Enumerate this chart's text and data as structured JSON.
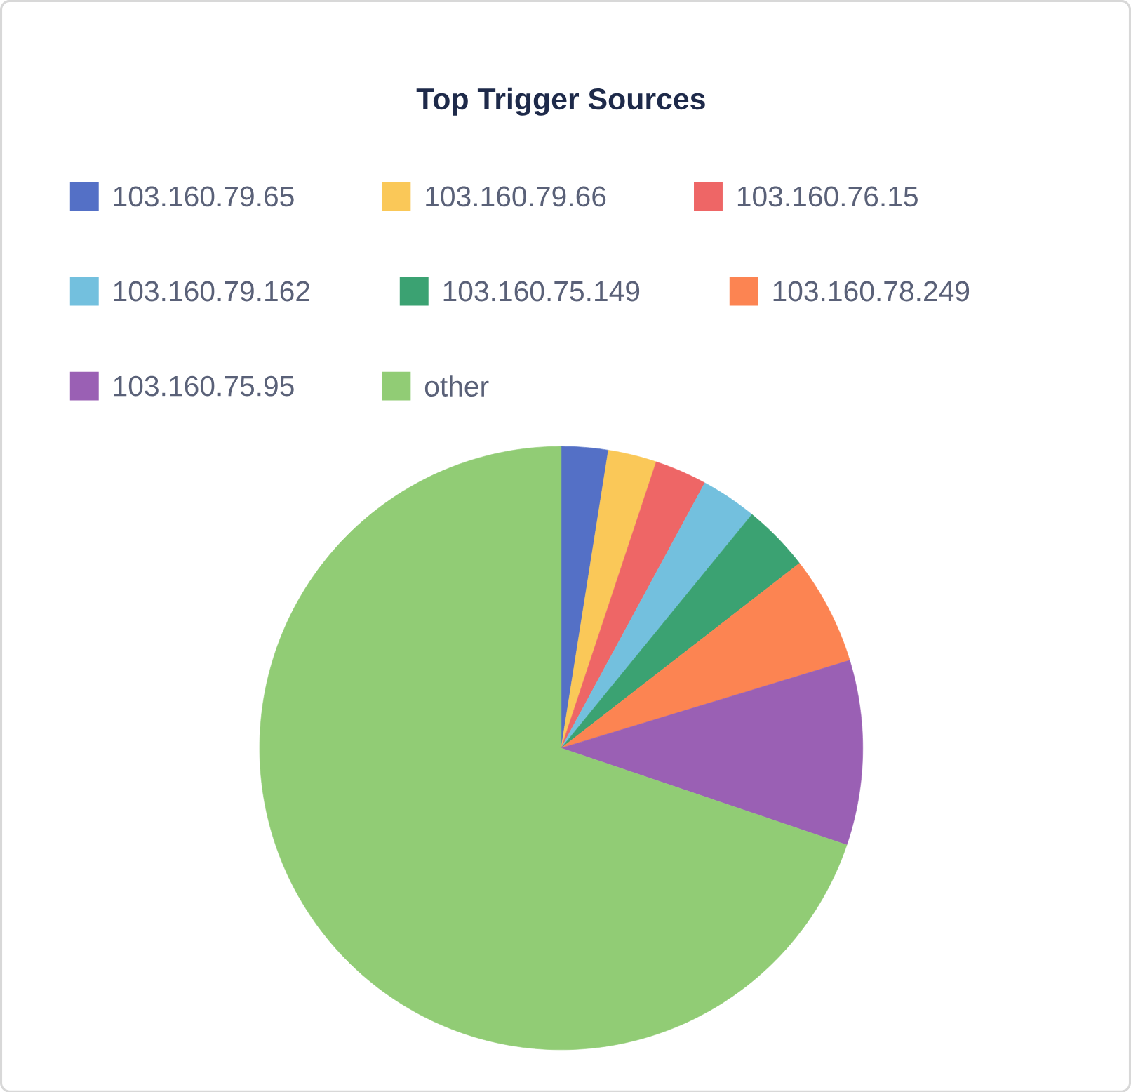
{
  "chart_data": {
    "type": "pie",
    "title": "Top Trigger Sources",
    "legend": "top",
    "categories": [
      "103.160.79.65",
      "103.160.79.66",
      "103.160.76.15",
      "103.160.79.162",
      "103.160.75.149",
      "103.160.78.249",
      "103.160.75.95",
      "other"
    ],
    "values": [
      2.5,
      2.6,
      2.8,
      3.0,
      3.6,
      5.8,
      9.9,
      69.8
    ],
    "colors": [
      "#5470c6",
      "#fac858",
      "#ee6666",
      "#73c0de",
      "#3ba272",
      "#fc8452",
      "#9a60b4",
      "#91cc75"
    ]
  }
}
